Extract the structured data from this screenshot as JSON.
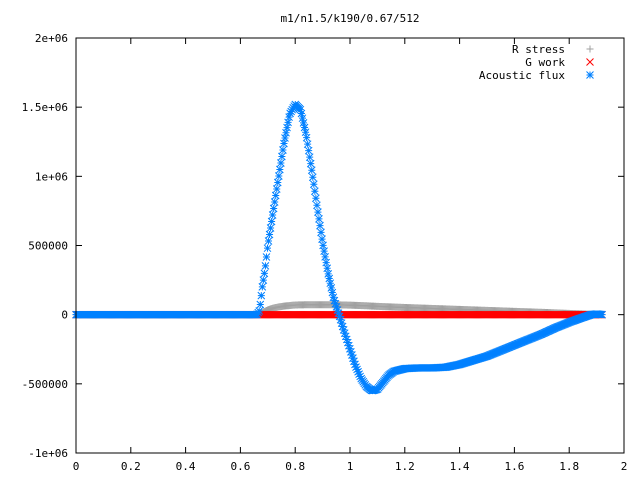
{
  "chart_data": {
    "type": "scatter",
    "title": "m1/n1.5/k190/0.67/512",
    "xlabel": "",
    "ylabel": "",
    "xlim": [
      0,
      2
    ],
    "ylim": [
      -1000000,
      2000000
    ],
    "x_ticks": [
      0,
      0.2,
      0.4,
      0.6,
      0.8,
      1,
      1.2,
      1.4,
      1.6,
      1.8,
      2
    ],
    "x_tick_labels": [
      "0",
      "0.2",
      "0.4",
      "0.6",
      "0.8",
      "1",
      "1.2",
      "1.4",
      "1.6",
      "1.8",
      "2"
    ],
    "y_ticks": [
      -1000000,
      -500000,
      0,
      500000,
      1000000,
      1500000,
      2000000
    ],
    "y_tick_labels": [
      "-1e+06",
      "-500000",
      "0",
      "500000",
      "1e+06",
      "1.5e+06",
      "2e+06"
    ],
    "grid": false,
    "legend_position": "top-right",
    "series": [
      {
        "name": "R stress",
        "marker": "plus",
        "color": "#a0a0a0",
        "points": [
          [
            0,
            0
          ],
          [
            0.2,
            0
          ],
          [
            0.4,
            0
          ],
          [
            0.6,
            0
          ],
          [
            0.67,
            0
          ],
          [
            0.68,
            15000
          ],
          [
            0.7,
            35000
          ],
          [
            0.72,
            48000
          ],
          [
            0.74,
            56000
          ],
          [
            0.76,
            62000
          ],
          [
            0.78,
            66000
          ],
          [
            0.8,
            70000
          ],
          [
            0.85,
            72000
          ],
          [
            0.9,
            72000
          ],
          [
            0.95,
            71000
          ],
          [
            1.0,
            69000
          ],
          [
            1.05,
            65000
          ],
          [
            1.1,
            60000
          ],
          [
            1.2,
            52000
          ],
          [
            1.3,
            45000
          ],
          [
            1.4,
            38000
          ],
          [
            1.5,
            31000
          ],
          [
            1.6,
            24000
          ],
          [
            1.7,
            17000
          ],
          [
            1.8,
            9000
          ],
          [
            1.85,
            5000
          ],
          [
            1.9,
            2000
          ],
          [
            1.92,
            0
          ]
        ]
      },
      {
        "name": "G work",
        "marker": "x",
        "color": "#ff0000",
        "points": [
          [
            0,
            0
          ],
          [
            0.2,
            0
          ],
          [
            0.4,
            0
          ],
          [
            0.6,
            0
          ],
          [
            0.8,
            0
          ],
          [
            1.0,
            0
          ],
          [
            1.2,
            0
          ],
          [
            1.4,
            0
          ],
          [
            1.6,
            0
          ],
          [
            1.8,
            0
          ],
          [
            1.92,
            0
          ]
        ]
      },
      {
        "name": "Acoustic flux",
        "marker": "star",
        "color": "#0080ff",
        "points": [
          [
            0,
            0
          ],
          [
            0.2,
            0
          ],
          [
            0.4,
            0
          ],
          [
            0.6,
            0
          ],
          [
            0.66,
            0
          ],
          [
            0.67,
            30000
          ],
          [
            0.68,
            200000
          ],
          [
            0.69,
            330000
          ],
          [
            0.7,
            500000
          ],
          [
            0.72,
            750000
          ],
          [
            0.74,
            1000000
          ],
          [
            0.76,
            1250000
          ],
          [
            0.78,
            1450000
          ],
          [
            0.8,
            1520000
          ],
          [
            0.82,
            1480000
          ],
          [
            0.84,
            1300000
          ],
          [
            0.86,
            1050000
          ],
          [
            0.88,
            780000
          ],
          [
            0.9,
            520000
          ],
          [
            0.92,
            300000
          ],
          [
            0.94,
            120000
          ],
          [
            0.96,
            0
          ],
          [
            0.98,
            -130000
          ],
          [
            1.0,
            -250000
          ],
          [
            1.02,
            -370000
          ],
          [
            1.04,
            -460000
          ],
          [
            1.06,
            -520000
          ],
          [
            1.08,
            -550000
          ],
          [
            1.1,
            -540000
          ],
          [
            1.12,
            -490000
          ],
          [
            1.14,
            -440000
          ],
          [
            1.16,
            -410000
          ],
          [
            1.2,
            -390000
          ],
          [
            1.25,
            -385000
          ],
          [
            1.3,
            -385000
          ],
          [
            1.35,
            -380000
          ],
          [
            1.4,
            -360000
          ],
          [
            1.45,
            -330000
          ],
          [
            1.5,
            -300000
          ],
          [
            1.55,
            -260000
          ],
          [
            1.6,
            -220000
          ],
          [
            1.65,
            -180000
          ],
          [
            1.7,
            -140000
          ],
          [
            1.75,
            -95000
          ],
          [
            1.8,
            -55000
          ],
          [
            1.85,
            -20000
          ],
          [
            1.88,
            0
          ],
          [
            1.9,
            5000
          ],
          [
            1.92,
            0
          ]
        ]
      }
    ]
  }
}
